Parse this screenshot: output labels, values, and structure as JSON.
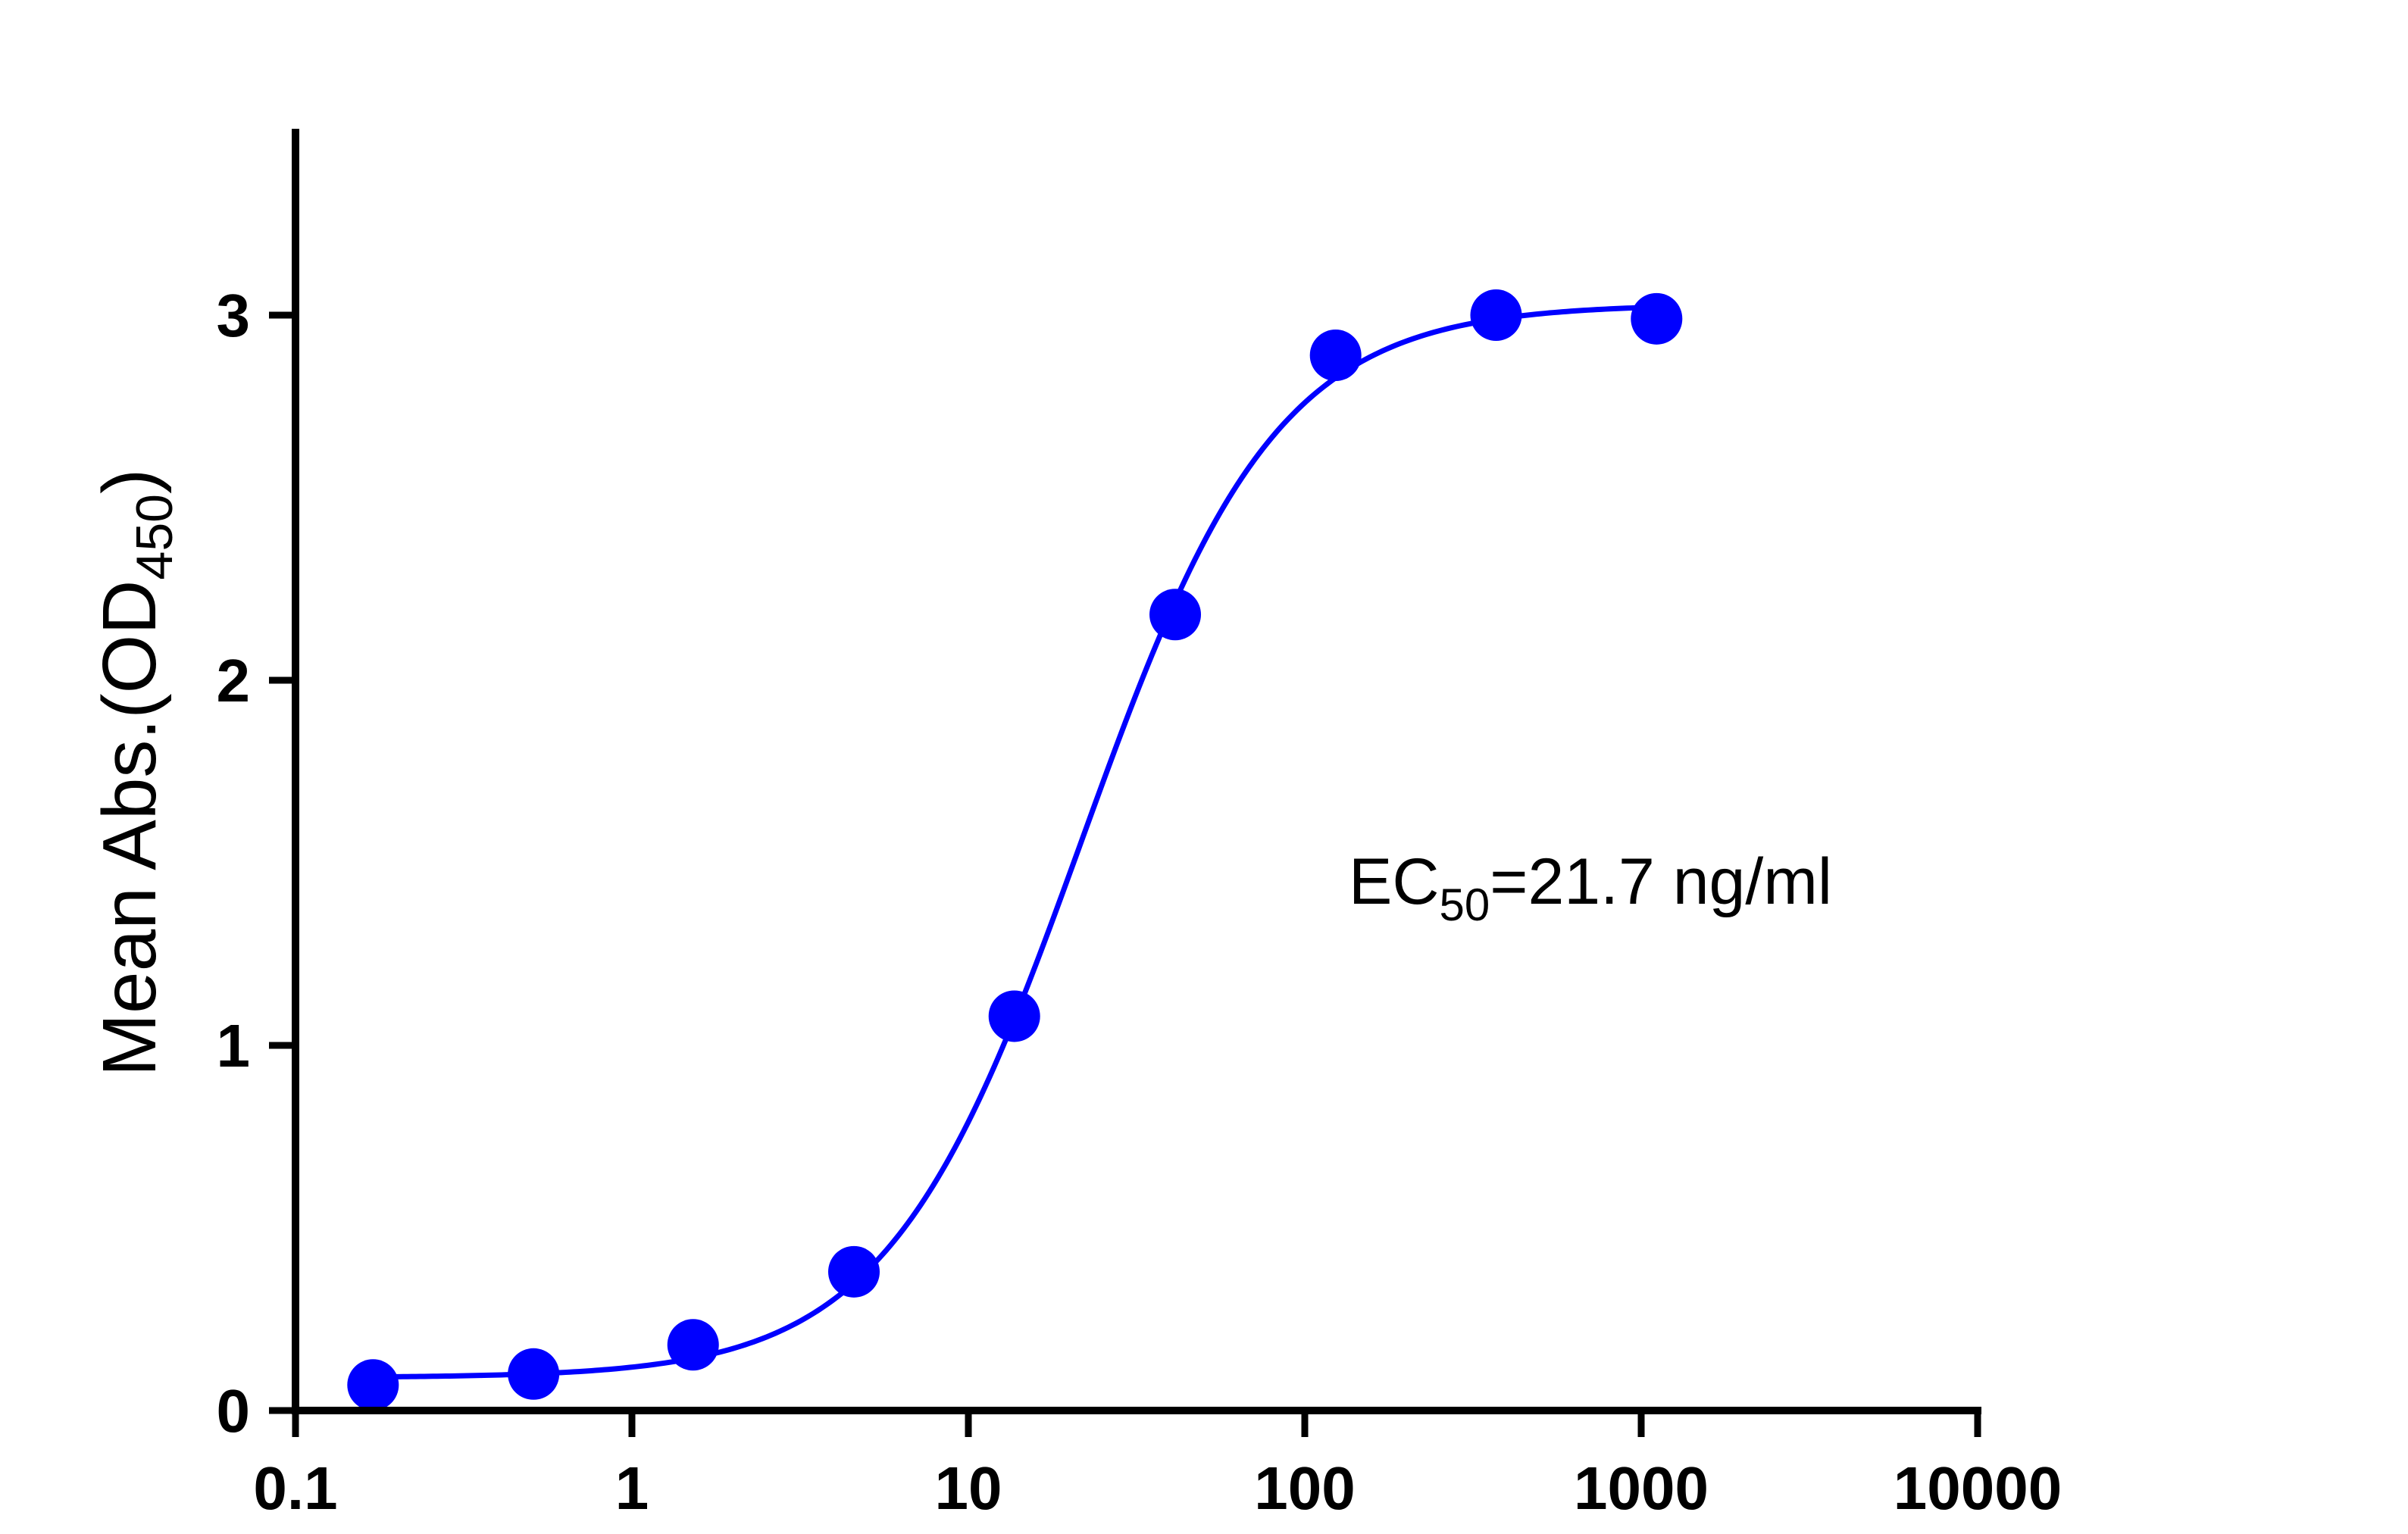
{
  "chart_data": {
    "type": "scatter",
    "title": "",
    "xlabel": "",
    "ylabel": {
      "main": "Mean Abs.(OD",
      "subscript": "450",
      "close": ")"
    },
    "x_scale": "log",
    "xlim": [
      0.1,
      10000
    ],
    "ylim": [
      0,
      3.5
    ],
    "x_ticks": [
      {
        "value": 0.1,
        "label": "0.1"
      },
      {
        "value": 1,
        "label": "1"
      },
      {
        "value": 10,
        "label": "10"
      },
      {
        "value": 100,
        "label": "100"
      },
      {
        "value": 1000,
        "label": "1000"
      },
      {
        "value": 10000,
        "label": "10000"
      }
    ],
    "y_ticks": [
      {
        "value": 0,
        "label": "0"
      },
      {
        "value": 1,
        "label": "1"
      },
      {
        "value": 2,
        "label": "2"
      },
      {
        "value": 3,
        "label": "3"
      }
    ],
    "grid": false,
    "series": [
      {
        "color": "#0000ff",
        "points": [
          {
            "x": 0.17,
            "y": 0.07
          },
          {
            "x": 0.51,
            "y": 0.1
          },
          {
            "x": 1.52,
            "y": 0.18
          },
          {
            "x": 4.57,
            "y": 0.38
          },
          {
            "x": 13.7,
            "y": 1.08
          },
          {
            "x": 41.2,
            "y": 2.18
          },
          {
            "x": 123.5,
            "y": 2.89
          },
          {
            "x": 370.4,
            "y": 3.0
          },
          {
            "x": 1111,
            "y": 2.99
          }
        ],
        "fit": {
          "model": "four-parameter logistic",
          "bottom": 0.09,
          "top": 3.03,
          "ec50": 21.7,
          "hill": 1.5,
          "x_range": [
            0.17,
            1111
          ]
        }
      }
    ],
    "annotations": [
      {
        "text_main": "EC",
        "text_sub": "50",
        "text_rest": "=21.7 ng/ml"
      }
    ]
  }
}
